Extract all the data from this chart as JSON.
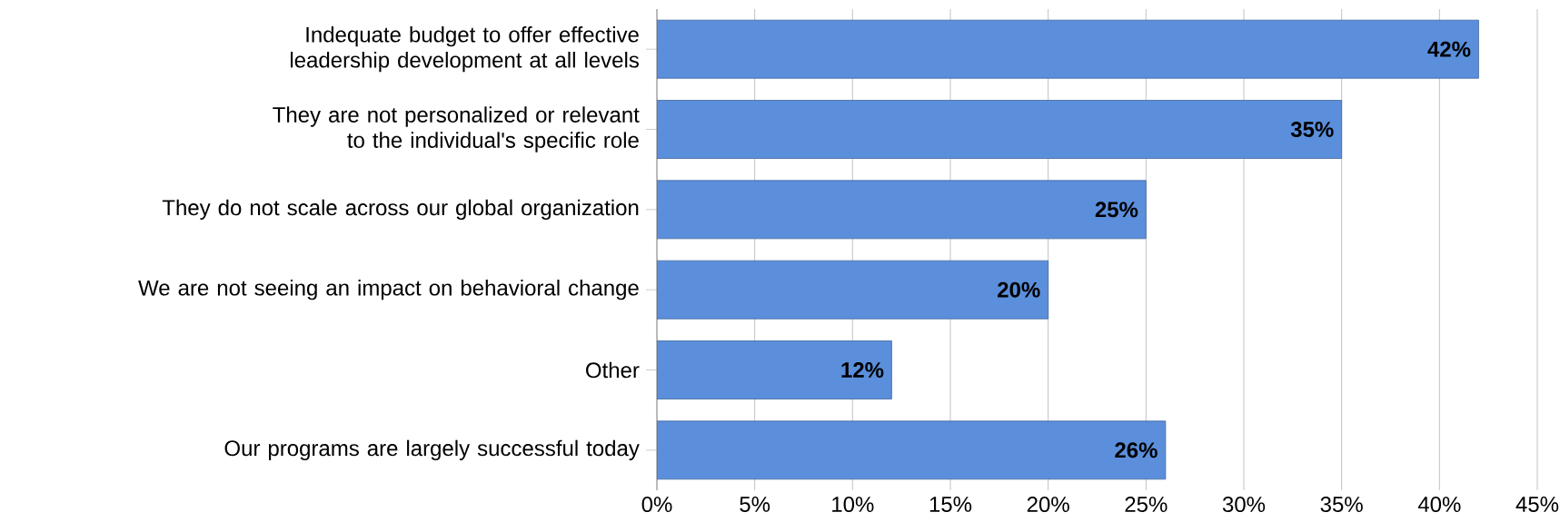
{
  "chart_data": {
    "type": "bar",
    "orientation": "horizontal",
    "categories": [
      "Indequate budget to offer effective leadership development at all levels",
      "They are not personalized or relevant to the individual's specific role",
      "They do not scale across our global organization",
      "We are not seeing an impact on behavioral change",
      "Other",
      "Our programs are largely successful today"
    ],
    "values": [
      42,
      35,
      25,
      20,
      12,
      26
    ],
    "value_labels": [
      "42%",
      "35%",
      "25%",
      "20%",
      "12%",
      "26%"
    ],
    "color": "#5b8fdc",
    "xlim": [
      0,
      45
    ],
    "xticks": [
      {
        "value": 0,
        "label": "0%"
      },
      {
        "value": 5,
        "label": "5%"
      },
      {
        "value": 10,
        "label": "10%"
      },
      {
        "value": 15,
        "label": "15%"
      },
      {
        "value": 20,
        "label": "20%"
      },
      {
        "value": 25,
        "label": "25%"
      },
      {
        "value": 30,
        "label": "30%"
      },
      {
        "value": 35,
        "label": "35%"
      },
      {
        "value": 40,
        "label": "40%"
      },
      {
        "value": 45,
        "label": "45%"
      }
    ],
    "grid": "x"
  }
}
